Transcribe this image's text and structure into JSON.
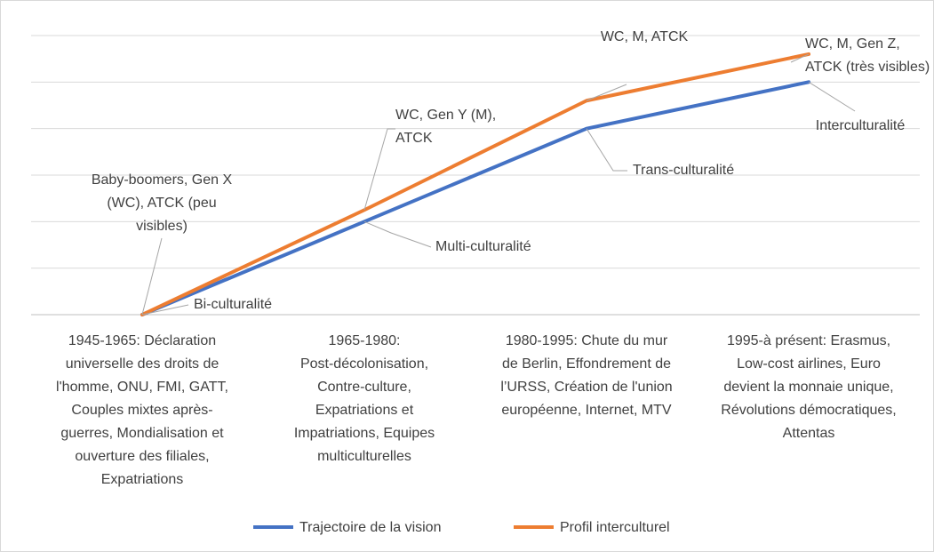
{
  "chart_data": {
    "type": "line",
    "categories": [
      "1945-1965: Déclaration\nuniverselle des droits de\nl'homme, ONU, FMI, GATT,\nCouples mixtes après-\nguerres, Mondialisation et\nouverture des filiales,\nExpatriations",
      "1965-1980:\nPost-décolonisation,\nContre-culture,\nExpatriations et\nImpatriations, Equipes\nmulticulturelles",
      "1980-1995: Chute du mur\nde Berlin, Effondrement de\nl’URSS, Création de l'union\neuropéenne, Internet, MTV",
      "1995-à présent: Erasmus,\nLow-cost airlines, Euro\ndevient la monnaie unique,\nRévolutions démocratiques,\nAttentas"
    ],
    "series": [
      {
        "name": "Trajectoire de la vision",
        "color": "#4472c4",
        "values": [
          0,
          2,
          4,
          5
        ]
      },
      {
        "name": "Profil interculturel",
        "color": "#ed7d31",
        "values": [
          0,
          2.25,
          4.6,
          5.6
        ]
      }
    ],
    "annotations": [
      "Bi-culturalité",
      "Baby-boomers, Gen X\n(WC), ATCK (peu\nvisibles)",
      "Multi-culturalité",
      "WC, Gen Y (M),\nATCK",
      "Trans-culturalité",
      "WC, M, ATCK",
      "Interculturalité",
      "WC, M, Gen Z,\nATCK (très visibles)"
    ],
    "ylim": [
      0,
      6
    ],
    "yticks": [
      0,
      1,
      2,
      3,
      4,
      5,
      6
    ],
    "grid": true,
    "legend": "bottom"
  }
}
